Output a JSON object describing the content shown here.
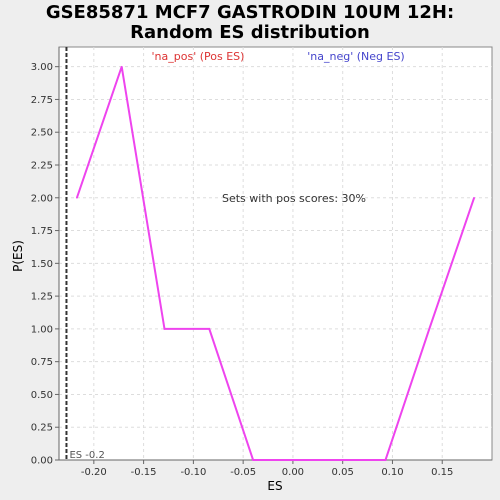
{
  "chart_data": {
    "type": "line",
    "title_lines": [
      "GSE85871 MCF7 GASTRODIN 10UM 12H:",
      "Random ES distribution"
    ],
    "xlabel": "ES",
    "ylabel": "P(ES)",
    "xlim": [
      -0.235,
      0.2
    ],
    "ylim": [
      0,
      3.15
    ],
    "x_ticks": [
      -0.2,
      -0.15,
      -0.1,
      -0.05,
      0.0,
      0.05,
      0.1,
      0.15
    ],
    "x_tick_labels": [
      "-0.20",
      "-0.15",
      "-0.10",
      "-0.05",
      "0.00",
      "0.05",
      "0.10",
      "0.15"
    ],
    "y_ticks": [
      0.0,
      0.25,
      0.5,
      0.75,
      1.0,
      1.25,
      1.5,
      1.75,
      2.0,
      2.25,
      2.5,
      2.75,
      3.0
    ],
    "y_tick_labels": [
      "0.00",
      "0.25",
      "0.50",
      "0.75",
      "1.00",
      "1.25",
      "1.50",
      "1.75",
      "2.00",
      "2.25",
      "2.50",
      "2.75",
      "3.00"
    ],
    "grid": true,
    "series": [
      {
        "color": "#ee44ee",
        "points": [
          [
            -0.217,
            2.0
          ],
          [
            -0.172,
            3.0
          ],
          [
            -0.129,
            1.0
          ],
          [
            -0.084,
            1.0
          ],
          [
            -0.04,
            0.0
          ],
          [
            0.093,
            0.0
          ],
          [
            0.137,
            1.0
          ],
          [
            0.182,
            2.0
          ]
        ]
      }
    ],
    "legend": [
      {
        "label": "'na_pos' (Pos ES)",
        "color": "#dd3333"
      },
      {
        "label": "'na_neg' (Neg ES)",
        "color": "#4444cc"
      }
    ],
    "annotation": "Sets with pos scores: 30%",
    "marker": {
      "x": -0.2275,
      "label": "ES -0.2"
    }
  }
}
